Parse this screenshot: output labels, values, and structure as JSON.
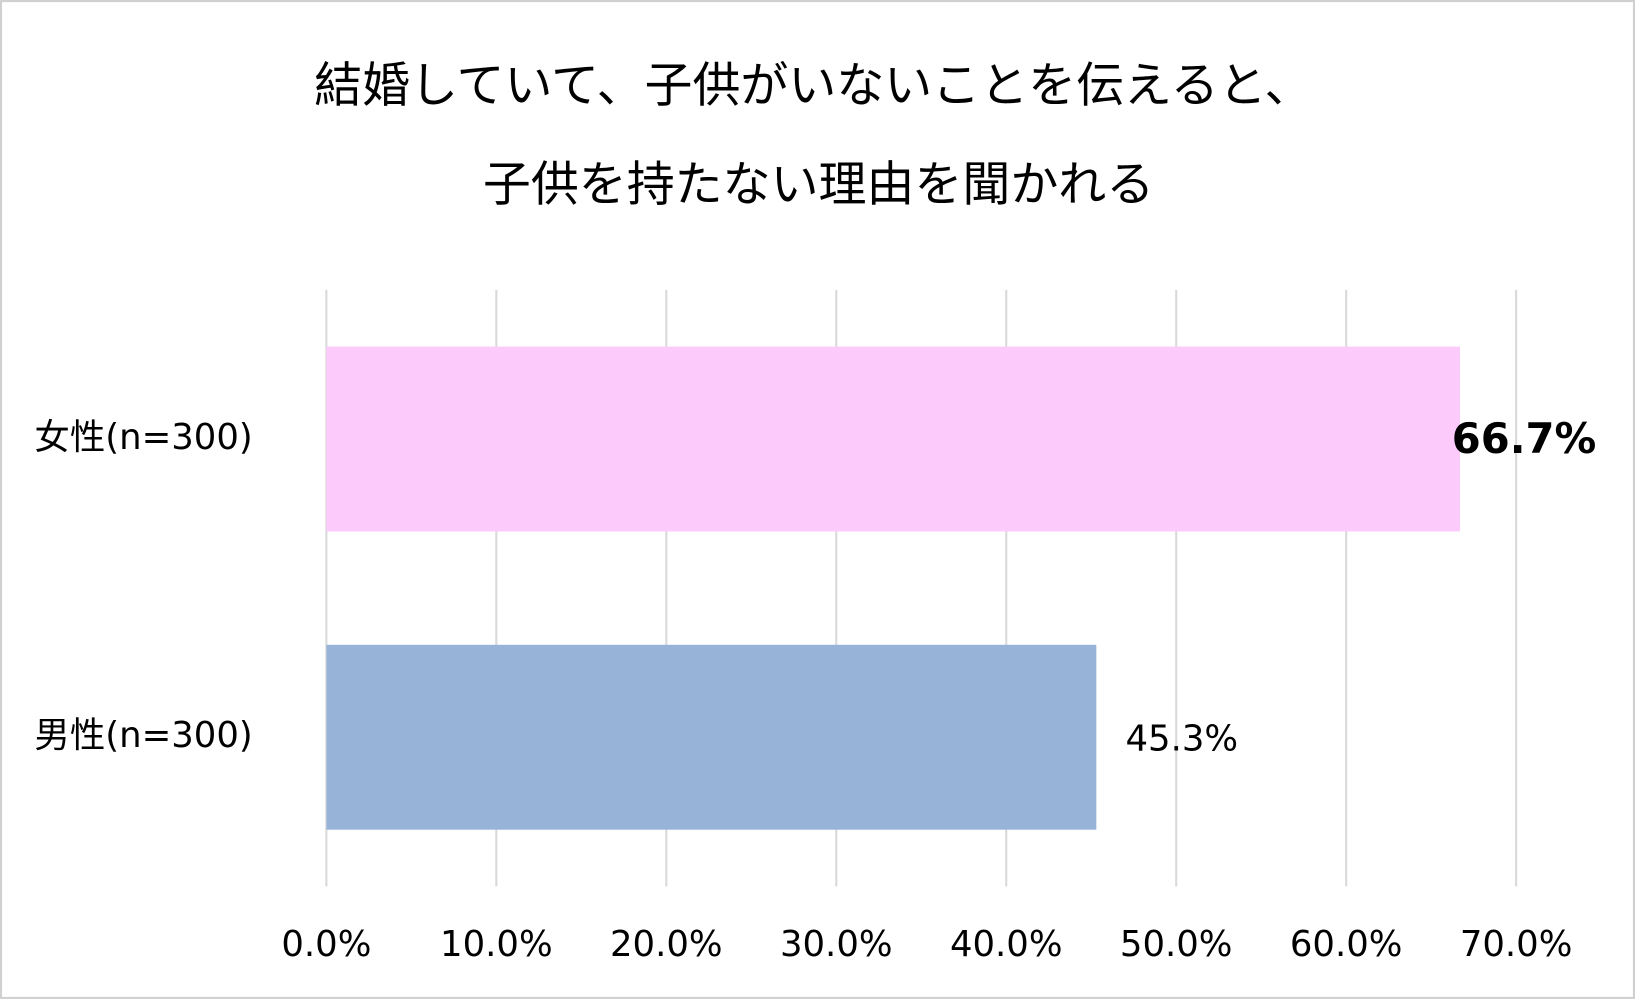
{
  "chart_data": {
    "type": "bar",
    "orientation": "horizontal",
    "title": [
      "結婚していて、子供がいないことを伝えると、",
      "子供を持たない理由を聞かれる"
    ],
    "categories": [
      "女性(n=300)",
      "男性(n=300)"
    ],
    "values": [
      66.7,
      45.3
    ],
    "value_labels": [
      "66.7%",
      "45.3%"
    ],
    "value_label_weights": [
      "bold",
      "normal"
    ],
    "colors": [
      "#fccbfc",
      "#98b3d8"
    ],
    "xlim": [
      0,
      70
    ],
    "xticks": [
      {
        "value": 0,
        "label": "0.0%"
      },
      {
        "value": 10,
        "label": "10.0%"
      },
      {
        "value": 20,
        "label": "20.0%"
      },
      {
        "value": 30,
        "label": "30.0%"
      },
      {
        "value": 40,
        "label": "40.0%"
      },
      {
        "value": 50,
        "label": "50.0%"
      },
      {
        "value": 60,
        "label": "60.0%"
      },
      {
        "value": 70,
        "label": "70.0%"
      }
    ],
    "grid": true
  }
}
